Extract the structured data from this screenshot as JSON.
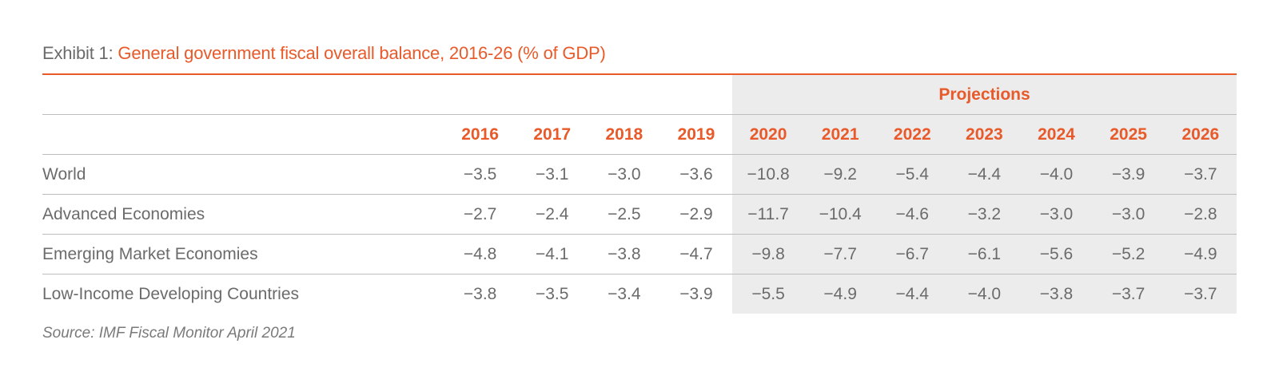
{
  "title": {
    "lead": "Exhibit 1: ",
    "main": "General government fiscal overall balance, 2016-26 (% of GDP)"
  },
  "projections_label": "Projections",
  "years": [
    "2016",
    "2017",
    "2018",
    "2019",
    "2020",
    "2021",
    "2022",
    "2023",
    "2024",
    "2025",
    "2026"
  ],
  "rows": [
    {
      "label": "World",
      "values": [
        "−3.5",
        "−3.1",
        "−3.0",
        "−3.6",
        "−10.8",
        "−9.2",
        "−5.4",
        "−4.4",
        "−4.0",
        "−3.9",
        "−3.7"
      ]
    },
    {
      "label": "Advanced Economies",
      "values": [
        "−2.7",
        "−2.4",
        "−2.5",
        "−2.9",
        "−11.7",
        "−10.4",
        "−4.6",
        "−3.2",
        "−3.0",
        "−3.0",
        "−2.8"
      ]
    },
    {
      "label": "Emerging Market Economies",
      "values": [
        "−4.8",
        "−4.1",
        "−3.8",
        "−4.7",
        "−9.8",
        "−7.7",
        "−6.7",
        "−6.1",
        "−5.6",
        "−5.2",
        "−4.9"
      ]
    },
    {
      "label": "Low-Income Developing Countries",
      "values": [
        "−3.8",
        "−3.5",
        "−3.4",
        "−3.9",
        "−5.5",
        "−4.9",
        "−4.4",
        "−4.0",
        "−3.8",
        "−3.7",
        "−3.7"
      ]
    }
  ],
  "source": "Source: IMF Fiscal Monitor April 2021",
  "colors": {
    "accent": "#e85a2a",
    "text": "#6b6b6b",
    "projection_shade": "#ececec"
  }
}
